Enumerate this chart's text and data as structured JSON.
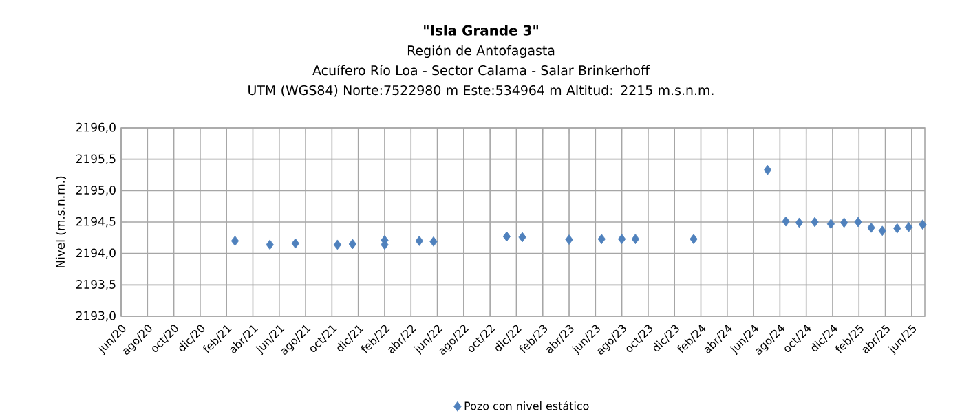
{
  "chart_data": {
    "type": "scatter",
    "title": "\"Isla Grande 3\"",
    "subtitle": "Región de Antofagasta\nAcuífero Río Loa - Sector Calama - Salar Brinkerhoff\nUTM (WGS84) Norte:7522980 m   Este:534964 m Altitud: 2215 m.s.n.m.",
    "ylabel": "Nivel (m.s.n.m.)",
    "series": [
      {
        "name": "Pozo con nivel estático",
        "color": "#4f81bd",
        "x": [
          "2021-02-19",
          "2021-05-10",
          "2021-07-08",
          "2021-10-14",
          "2021-11-18",
          "2022-02-01",
          "2022-02-01",
          "2022-04-20",
          "2022-05-23",
          "2022-11-09",
          "2022-12-15",
          "2023-04-01",
          "2023-06-15",
          "2023-08-01",
          "2023-09-02",
          "2024-01-15",
          "2024-07-03",
          "2024-08-15",
          "2024-09-15",
          "2024-10-21",
          "2024-11-27",
          "2024-12-28",
          "2025-01-30",
          "2025-02-27",
          "2025-03-25",
          "2025-04-28",
          "2025-05-25",
          "2025-06-26"
        ],
        "values": [
          2194.2,
          2194.14,
          2194.16,
          2194.14,
          2194.15,
          2194.21,
          2194.14,
          2194.2,
          2194.19,
          2194.27,
          2194.26,
          2194.22,
          2194.23,
          2194.23,
          2194.23,
          2194.23,
          2195.33,
          2194.51,
          2194.49,
          2194.5,
          2194.47,
          2194.49,
          2194.5,
          2194.41,
          2194.36,
          2194.4,
          2194.42,
          2194.46
        ]
      }
    ],
    "xlim": [
      "2020-06-01",
      "2025-07-01"
    ],
    "xticks": [
      {
        "value": "2020-06",
        "label": "jun/20"
      },
      {
        "value": "2020-08",
        "label": "ago/20"
      },
      {
        "value": "2020-10",
        "label": "oct/20"
      },
      {
        "value": "2020-12",
        "label": "dic/20"
      },
      {
        "value": "2021-02",
        "label": "feb/21"
      },
      {
        "value": "2021-04",
        "label": "abr/21"
      },
      {
        "value": "2021-06",
        "label": "jun/21"
      },
      {
        "value": "2021-08",
        "label": "ago/21"
      },
      {
        "value": "2021-10",
        "label": "oct/21"
      },
      {
        "value": "2021-12",
        "label": "dic/21"
      },
      {
        "value": "2022-02",
        "label": "feb/22"
      },
      {
        "value": "2022-04",
        "label": "abr/22"
      },
      {
        "value": "2022-06",
        "label": "jun/22"
      },
      {
        "value": "2022-08",
        "label": "ago/22"
      },
      {
        "value": "2022-10",
        "label": "oct/22"
      },
      {
        "value": "2022-12",
        "label": "dic/22"
      },
      {
        "value": "2023-02",
        "label": "feb/23"
      },
      {
        "value": "2023-04",
        "label": "abr/23"
      },
      {
        "value": "2023-06",
        "label": "jun/23"
      },
      {
        "value": "2023-08",
        "label": "ago/23"
      },
      {
        "value": "2023-10",
        "label": "oct/23"
      },
      {
        "value": "2023-12",
        "label": "dic/23"
      },
      {
        "value": "2024-02",
        "label": "feb/24"
      },
      {
        "value": "2024-04",
        "label": "abr/24"
      },
      {
        "value": "2024-06",
        "label": "jun/24"
      },
      {
        "value": "2024-08",
        "label": "ago/24"
      },
      {
        "value": "2024-10",
        "label": "oct/24"
      },
      {
        "value": "2024-12",
        "label": "dic/24"
      },
      {
        "value": "2025-02",
        "label": "feb/25"
      },
      {
        "value": "2025-04",
        "label": "abr/25"
      },
      {
        "value": "2025-06",
        "label": "jun/25"
      }
    ],
    "ylim": [
      2193,
      2196
    ],
    "yticks": [
      {
        "value": 2193,
        "label": "2193,0"
      },
      {
        "value": 2193.5,
        "label": "2193,5"
      },
      {
        "value": 2194,
        "label": "2194,0"
      },
      {
        "value": 2194.5,
        "label": "2194,5"
      },
      {
        "value": 2195,
        "label": "2195,0"
      },
      {
        "value": 2195.5,
        "label": "2195,5"
      },
      {
        "value": 2196,
        "label": "2196,0"
      }
    ],
    "grid": true,
    "legend": "bottom",
    "marker": "diamond"
  }
}
